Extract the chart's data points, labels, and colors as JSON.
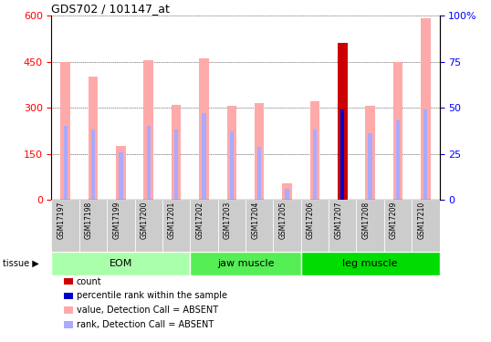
{
  "title": "GDS702 / 101147_at",
  "samples": [
    "GSM17197",
    "GSM17198",
    "GSM17199",
    "GSM17200",
    "GSM17201",
    "GSM17202",
    "GSM17203",
    "GSM17204",
    "GSM17205",
    "GSM17206",
    "GSM17207",
    "GSM17208",
    "GSM17209",
    "GSM17210"
  ],
  "value_absent": [
    450,
    400,
    175,
    455,
    310,
    460,
    305,
    315,
    55,
    320,
    0,
    305,
    450,
    590
  ],
  "rank_absent_pct": [
    40,
    38,
    26,
    40,
    38,
    47,
    37,
    29,
    6,
    38,
    0,
    36,
    43,
    49
  ],
  "count": [
    0,
    0,
    0,
    0,
    0,
    0,
    0,
    0,
    0,
    0,
    510,
    0,
    0,
    0
  ],
  "percentile": [
    0,
    0,
    0,
    0,
    0,
    0,
    0,
    0,
    0,
    0,
    49,
    0,
    0,
    0
  ],
  "ylim_left": [
    0,
    600
  ],
  "ylim_right": [
    0,
    100
  ],
  "yticks_left": [
    0,
    150,
    300,
    450,
    600
  ],
  "yticks_right": [
    0,
    25,
    50,
    75,
    100
  ],
  "groups": [
    {
      "label": "EOM",
      "start": 0,
      "end": 5,
      "color": "#aaffaa"
    },
    {
      "label": "jaw muscle",
      "start": 5,
      "end": 9,
      "color": "#55ee55"
    },
    {
      "label": "leg muscle",
      "start": 9,
      "end": 14,
      "color": "#00dd00"
    }
  ],
  "color_value_absent": "#ffaaaa",
  "color_rank_absent": "#aaaaff",
  "color_count": "#cc0000",
  "color_percentile": "#0000cc",
  "background_xtick": "#cccccc",
  "tissue_label": "tissue",
  "legend_items": [
    {
      "label": "count",
      "color": "#cc0000"
    },
    {
      "label": "percentile rank within the sample",
      "color": "#0000cc"
    },
    {
      "label": "value, Detection Call = ABSENT",
      "color": "#ffaaaa"
    },
    {
      "label": "rank, Detection Call = ABSENT",
      "color": "#aaaaff"
    }
  ]
}
